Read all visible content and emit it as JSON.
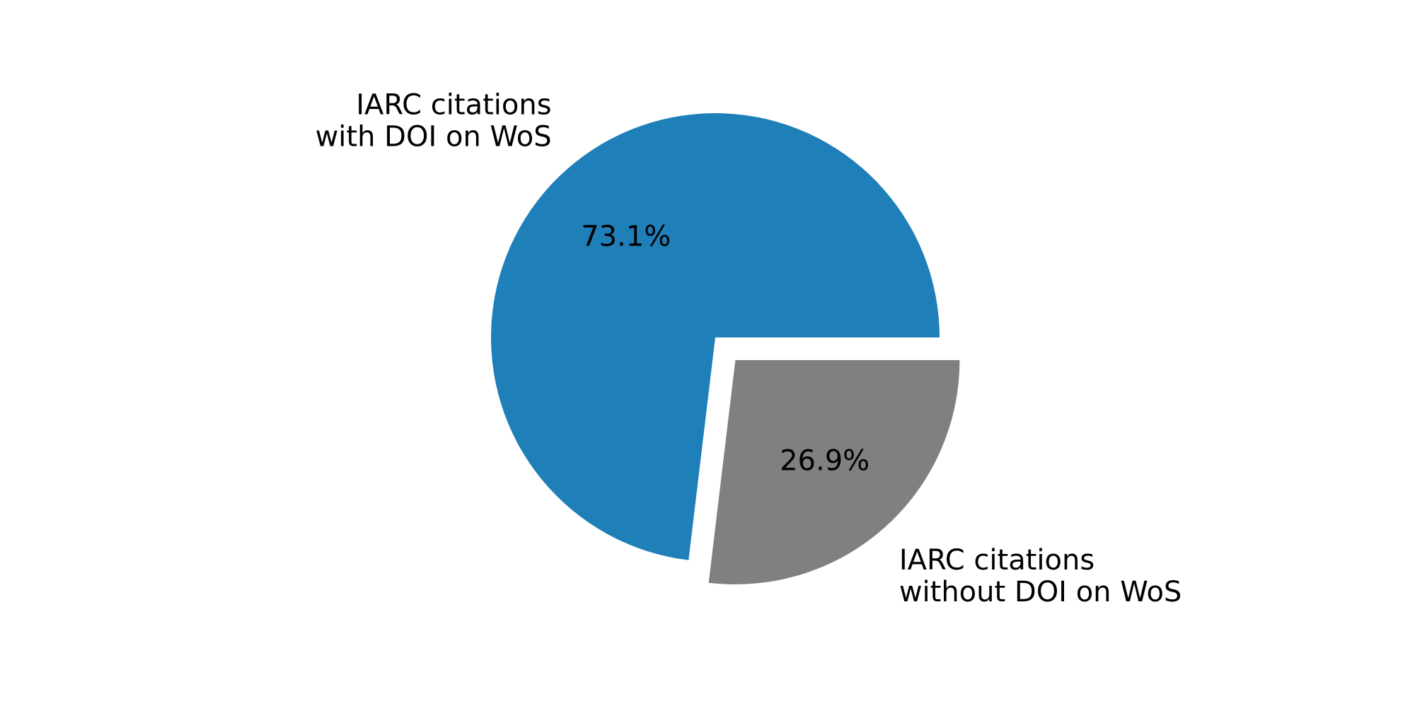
{
  "chart_data": {
    "type": "pie",
    "title": "",
    "slices": [
      {
        "label_lines": [
          "IARC citations",
          "with DOI on WoS"
        ],
        "value": 73.1,
        "value_label": "73.1%",
        "color": "#1f7fb8",
        "exploded": false
      },
      {
        "label_lines": [
          "IARC citations",
          "without DOI on WoS"
        ],
        "value": 26.9,
        "value_label": "26.9%",
        "color": "#808080",
        "exploded": true
      }
    ],
    "start": "3 o'clock",
    "direction": "counterclockwise",
    "legend": "none"
  }
}
